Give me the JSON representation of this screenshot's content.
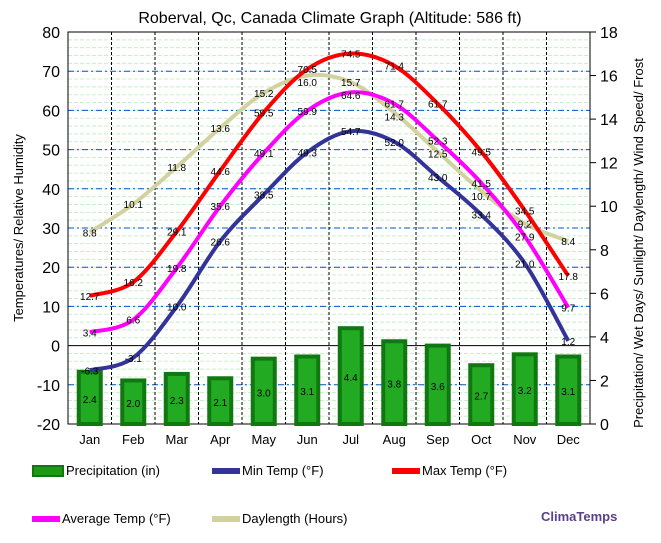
{
  "chart_data": {
    "type": "line",
    "title": "Roberval, Qc, Canada Climate Graph (Altitude: 586 ft)",
    "ylabel": "Temperatures/ Relative Humidity",
    "y2label": "Precipitation/ Wet Days/ Sunlight/ Daylength/ Wind Speed/ Frost",
    "ylim": [
      -20,
      80
    ],
    "y2lim": [
      0,
      18
    ],
    "yticks": [
      80,
      70,
      60,
      50,
      40,
      30,
      20,
      10,
      0,
      -10,
      -20
    ],
    "y2ticks": [
      18,
      16,
      14,
      12,
      10,
      8,
      6,
      4,
      2,
      0
    ],
    "categories": [
      "Jan",
      "Feb",
      "Mar",
      "Apr",
      "May",
      "Jun",
      "Jul",
      "Aug",
      "Sep",
      "Oct",
      "Nov",
      "Dec"
    ],
    "grid": true,
    "series": [
      {
        "name": "Precipitation (in)",
        "type": "bar",
        "axis": "right",
        "color": "#1a9a1a",
        "values": [
          2.4,
          2.0,
          2.3,
          2.1,
          3.0,
          3.1,
          4.4,
          3.8,
          3.6,
          2.7,
          3.2,
          3.1
        ]
      },
      {
        "name": "Min Temp (°F)",
        "axis": "left",
        "color": "#333399",
        "values": [
          -6.3,
          -3.1,
          10.0,
          26.6,
          38.5,
          49.3,
          54.7,
          52.0,
          43.0,
          33.4,
          21.0,
          1.2
        ]
      },
      {
        "name": "Max Temp (°F)",
        "axis": "left",
        "color": "#ff0000",
        "values": [
          12.7,
          16.2,
          29.1,
          44.6,
          59.5,
          70.5,
          74.5,
          71.4,
          61.7,
          49.5,
          34.5,
          17.8
        ]
      },
      {
        "name": "Average Temp (°F)",
        "axis": "left",
        "color": "#ff00ff",
        "values": [
          3.4,
          6.6,
          19.8,
          35.6,
          49.1,
          59.9,
          64.6,
          61.7,
          52.3,
          41.5,
          27.9,
          9.7
        ]
      },
      {
        "name": "Daylength (Hours)",
        "axis": "right",
        "color": "#d2d2a0",
        "values": [
          8.8,
          10.1,
          11.8,
          13.6,
          15.2,
          16.0,
          15.7,
          14.3,
          12.5,
          10.7,
          9.2,
          8.4
        ]
      }
    ],
    "legend_placement": "bottom"
  },
  "brand": "ClimaTemps"
}
